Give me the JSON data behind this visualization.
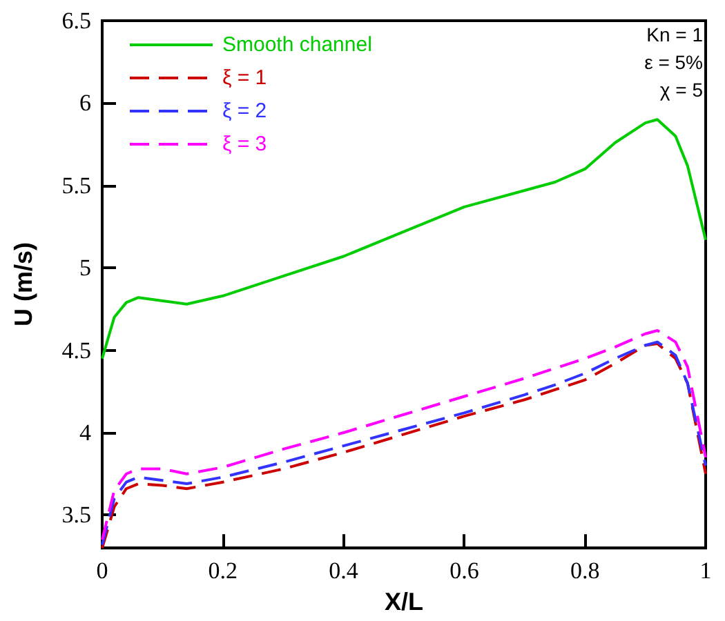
{
  "chart_data": {
    "type": "line",
    "xlabel": "X/L",
    "ylabel": "U (m/s)",
    "annotations": [
      "Kn = 1",
      "ε = 5%",
      "χ = 5"
    ],
    "x": [
      0,
      0.02,
      0.04,
      0.06,
      0.1,
      0.14,
      0.2,
      0.3,
      0.4,
      0.5,
      0.6,
      0.7,
      0.75,
      0.8,
      0.85,
      0.9,
      0.92,
      0.95,
      0.97,
      1.0
    ],
    "series": [
      {
        "name": "Smooth channel",
        "color": "#00cc00",
        "line_style": "solid",
        "values": [
          4.45,
          4.7,
          4.79,
          4.82,
          4.8,
          4.78,
          4.83,
          4.95,
          5.07,
          5.22,
          5.37,
          5.47,
          5.52,
          5.6,
          5.76,
          5.88,
          5.9,
          5.8,
          5.62,
          5.17
        ]
      },
      {
        "name": "ξ = 1",
        "color": "#cc0000",
        "line_style": "dashed",
        "values": [
          3.3,
          3.55,
          3.66,
          3.69,
          3.68,
          3.66,
          3.7,
          3.78,
          3.88,
          3.99,
          4.1,
          4.2,
          4.26,
          4.32,
          4.42,
          4.53,
          4.54,
          4.45,
          4.3,
          3.75
        ]
      },
      {
        "name": "ξ = 2",
        "color": "#3333ff",
        "line_style": "dashed",
        "values": [
          3.32,
          3.6,
          3.7,
          3.73,
          3.71,
          3.69,
          3.73,
          3.82,
          3.92,
          4.02,
          4.12,
          4.23,
          4.29,
          4.36,
          4.45,
          4.53,
          4.55,
          4.47,
          4.3,
          3.8
        ]
      },
      {
        "name": "ξ = 3",
        "color": "#ff00ff",
        "line_style": "dashed",
        "values": [
          3.35,
          3.65,
          3.75,
          3.78,
          3.78,
          3.75,
          3.79,
          3.9,
          4.0,
          4.11,
          4.22,
          4.33,
          4.39,
          4.45,
          4.52,
          4.6,
          4.62,
          4.55,
          4.4,
          3.85
        ]
      }
    ],
    "xlim": [
      0,
      1
    ],
    "xticks": [
      0,
      0.2,
      0.4,
      0.6,
      0.8,
      1
    ],
    "ylim": [
      3.3,
      6.5
    ],
    "yticks": [
      3.5,
      4,
      4.5,
      5,
      5.5,
      6,
      6.5
    ],
    "legend": "top left",
    "marker": "none"
  }
}
